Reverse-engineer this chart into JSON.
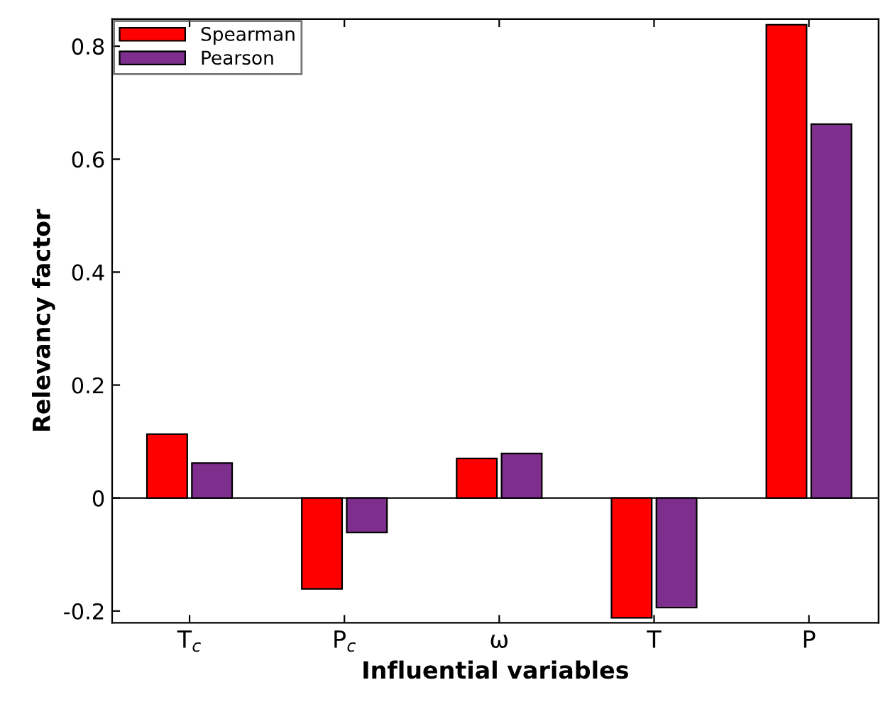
{
  "chart_data": {
    "type": "bar",
    "xlabel": "Influential variables",
    "ylabel": "Relevancy factor",
    "categories": [
      "T$_{c}$",
      "P$_{c}$",
      "ω",
      "T",
      "P"
    ],
    "series": [
      {
        "name": "Spearman",
        "color": "#ff0000",
        "values": [
          0.113,
          -0.161,
          0.07,
          -0.212,
          0.838
        ]
      },
      {
        "name": "Pearson",
        "color": "#7e2f8e",
        "values": [
          0.062,
          -0.061,
          0.079,
          -0.194,
          0.662
        ]
      }
    ],
    "ref_lines": [
      {
        "axis": "y",
        "value": 0,
        "color": "#000000"
      }
    ],
    "ylim": [
      -0.221,
      0.848
    ],
    "yticks": [
      -0.2,
      0,
      0.2,
      0.4,
      0.6,
      0.8
    ],
    "grid": false,
    "legend": "top left"
  }
}
